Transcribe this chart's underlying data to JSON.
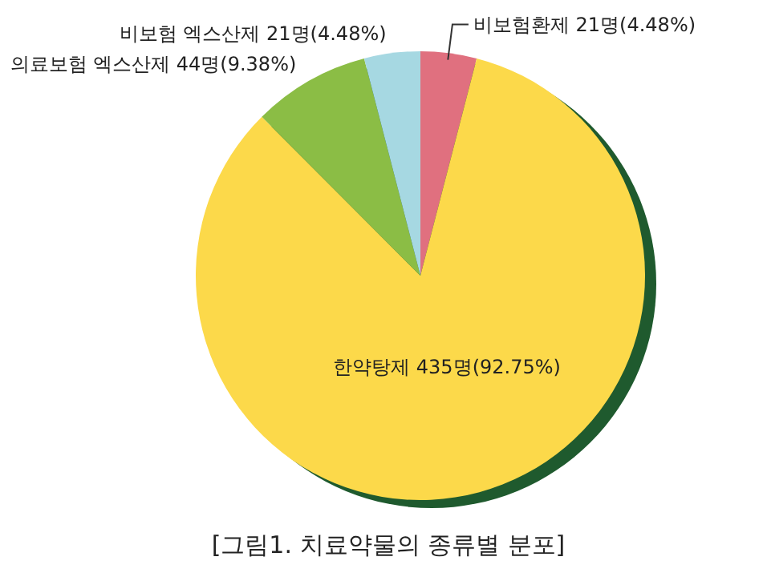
{
  "chart_data": {
    "type": "pie",
    "title": "[그림1. 치료약물의 종류별 분포]",
    "categories": [
      "비보험환제 21명(4.48%)",
      "한약탕제 435명(92.75%)",
      "의료보험 엑스산제 44명(9.38%)",
      "비보험 엑스산제 21명(4.48%)"
    ],
    "values": [
      21,
      435,
      44,
      21
    ],
    "colors": [
      "#e0707f",
      "#fcd94a",
      "#8bbd45",
      "#a6d8e2"
    ]
  }
}
